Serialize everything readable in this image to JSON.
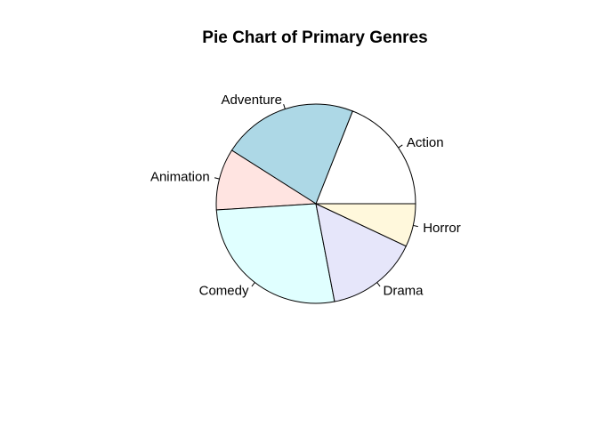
{
  "chart_data": {
    "type": "pie",
    "title": "Pie Chart of Primary Genres",
    "start_angle_deg": 0,
    "direction": "counterclockwise",
    "slices": [
      {
        "label": "Action",
        "value": 19.0,
        "color": "#FFFFFF"
      },
      {
        "label": "Adventure",
        "value": 22.0,
        "color": "#ADD8E6"
      },
      {
        "label": "Animation",
        "value": 10.0,
        "color": "#FFE4E1"
      },
      {
        "label": "Comedy",
        "value": 27.0,
        "color": "#E0FFFF"
      },
      {
        "label": "Drama",
        "value": 15.0,
        "color": "#E6E6FA"
      },
      {
        "label": "Horror",
        "value": 7.0,
        "color": "#FFF8DC"
      }
    ]
  }
}
